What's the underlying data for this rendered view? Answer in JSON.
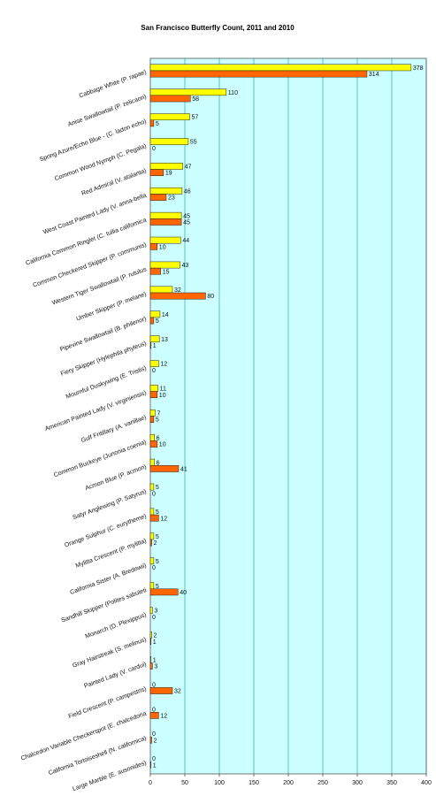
{
  "chart_data": {
    "type": "bar",
    "orientation": "horizontal",
    "title": "San Francisco Butterfly Count, 2011 and 2010",
    "xlabel": "",
    "ylabel": "",
    "xlim": [
      0,
      400
    ],
    "x_ticks": [
      "0",
      "50",
      "100",
      "150",
      "200",
      "250",
      "300",
      "350",
      "400"
    ],
    "grid": true,
    "legend": "none",
    "plot_background": "#ccffff",
    "categories": [
      "Cabbage White (P. rapae)",
      "Anise Swallowtail (P. zelicaon)",
      "Spring Azure/Echo Blue - (C. ladon echo)",
      "Common Wood Nymph (C. Pegala)",
      "Red Admiral (V. atalanta)",
      "West Coast Painted Lady (V. anna-bella",
      "California Common Ringlet (C. tullia californica",
      "Common Checkered Skipper (P. communis)",
      "Western Tiger Swallowtail (P. rutulus",
      "Umber Skipper (P. melane)",
      "Pipevine Swallowtail (B. philenor)",
      "Fiery Skipper (Hylephila phyleus)",
      "Mournful Duskywing (E. Tristis)",
      "American Painted Lady (V. virginiensis)",
      "Gulf Fritillary (A. vanillae)",
      "Common Buckeye (Junonia coenia)",
      "Acmon Blue (P. acmon)",
      "Satyr Anglewing (P. Satyrus)",
      "Orange Sulphur (C. eurytheme)",
      "Mylitta Crescent (P. mylitta)",
      "California Sister (A. Bredowii)",
      "Sandhill Skipper (Polites sabuleti",
      "Monarch (D. Plexippus)",
      "Gray Hairstreak (S. melinus)",
      "Painted Lady (V. cardui)",
      "Field Crescent (P. campestris)",
      "Chalcedon Variable Checkerspot (E. chalcedona",
      "California Tortoiseshell (N. californica)",
      "Large Marble (E. ausonides)"
    ],
    "series": [
      {
        "color": "#ffff00",
        "values": [
          378,
          110,
          57,
          55,
          47,
          46,
          45,
          44,
          43,
          32,
          14,
          13,
          12,
          11,
          7,
          6,
          6,
          5,
          5,
          5,
          5,
          5,
          3,
          2,
          1,
          0,
          0,
          0,
          0
        ]
      },
      {
        "color": "#ff6600",
        "values": [
          314,
          58,
          5,
          0,
          19,
          23,
          45,
          10,
          15,
          80,
          5,
          1,
          0,
          10,
          5,
          10,
          41,
          0,
          12,
          2,
          0,
          40,
          0,
          1,
          3,
          32,
          12,
          2,
          1
        ]
      }
    ]
  }
}
